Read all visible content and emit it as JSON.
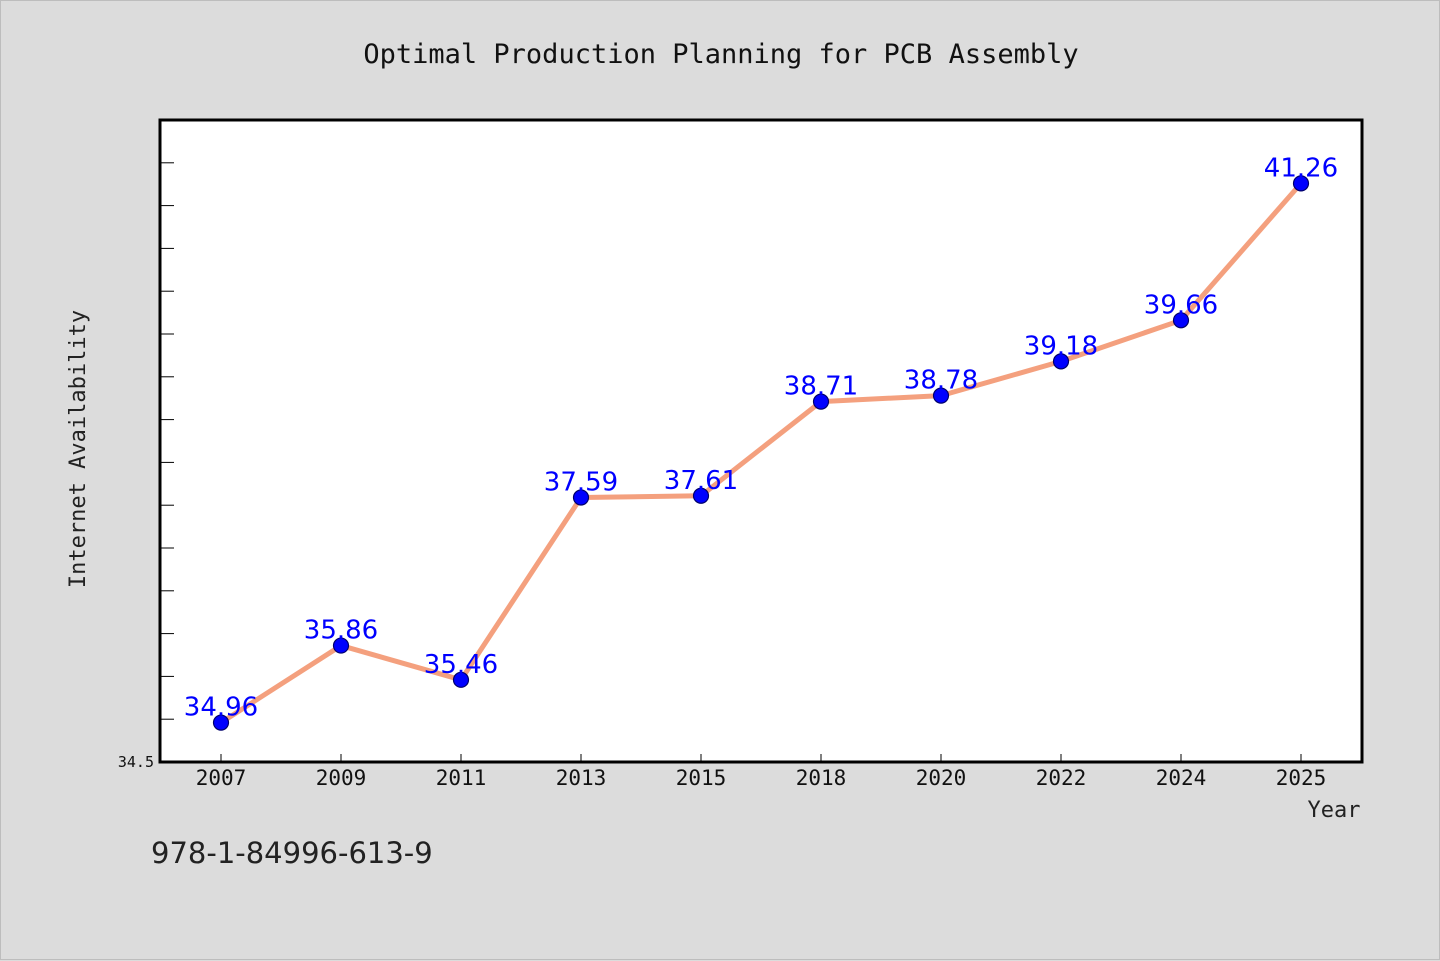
{
  "chart_data": {
    "type": "line",
    "title": "Optimal Production Planning for PCB Assembly",
    "xlabel": "Year",
    "ylabel": "Internet Availability",
    "categories": [
      "2007",
      "2009",
      "2011",
      "2013",
      "2015",
      "2018",
      "2020",
      "2022",
      "2024",
      "2025"
    ],
    "series": [
      {
        "values": [
          34.96,
          35.86,
          35.46,
          37.59,
          37.61,
          38.71,
          38.78,
          39.18,
          39.66,
          41.26
        ],
        "data_labels": [
          "34.96",
          "35.86",
          "35.46",
          "37.59",
          "37.61",
          "38.71",
          "38.78",
          "39.18",
          "39.66",
          "41.26"
        ]
      }
    ],
    "ylim": [
      34.5,
      42.0
    ],
    "ytick_labels": [
      "34.5"
    ],
    "grid": false,
    "line_color": "#f4a07e",
    "marker_color": "#0000ff",
    "label_color": "#0000ff"
  },
  "footer": {
    "isbn": "978-1-84996-613-9"
  }
}
